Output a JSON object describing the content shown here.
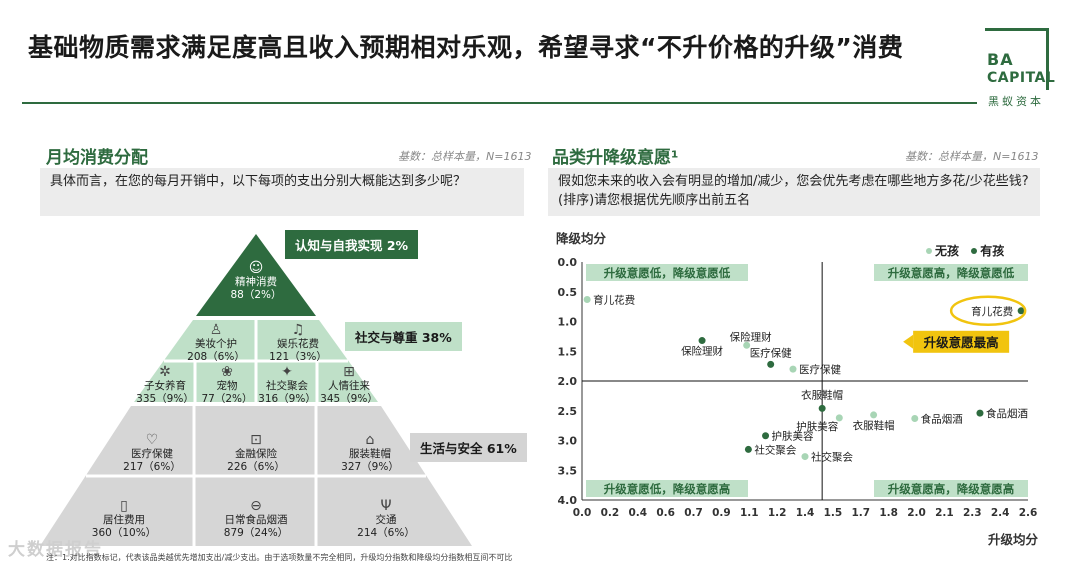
{
  "title": "基础物质需求满足度高且收入预期相对乐观，希望寻求“不升价格的升级”消费",
  "logo": {
    "line1": "BA",
    "line2": "CAPITAL",
    "cn": "黑蚁资本"
  },
  "left": {
    "section_title": "月均消费分配",
    "base_note": "基数：总样本量，N=1613",
    "question": "具体而言，在您的每月开销中，以下每项的支出分别大概能达到多少呢？",
    "callouts": [
      "认知与自我实现 2%",
      "社交与尊重 38%",
      "生活与安全 61%"
    ],
    "top": {
      "icon": "head-icon",
      "name": "精神消费",
      "value": "88（2%）"
    },
    "middle1": [
      {
        "icon": "cosmetics-icon",
        "name": "美妆个护",
        "value": "208（6%）"
      },
      {
        "icon": "entertainment-icon",
        "name": "娱乐花费",
        "value": "121（3%）"
      }
    ],
    "middle2": [
      {
        "icon": "baby-icon",
        "name": "子女养育",
        "value": "335（9%）"
      },
      {
        "icon": "pet-icon",
        "name": "宠物",
        "value": "77（2%）"
      },
      {
        "icon": "social-icon",
        "name": "社交聚会",
        "value": "316（9%）"
      },
      {
        "icon": "gift-icon",
        "name": "人情往来",
        "value": "345（9%）"
      }
    ],
    "bottom1": [
      {
        "icon": "heart-pulse-icon",
        "name": "医疗保健",
        "value": "217（6%）"
      },
      {
        "icon": "finance-icon",
        "name": "金融保险",
        "value": "226（6%）"
      },
      {
        "icon": "shirt-icon",
        "name": "服装鞋帽",
        "value": "327（9%）"
      }
    ],
    "bottom2": [
      {
        "icon": "door-icon",
        "name": "居住费用",
        "value": "360（10%）"
      },
      {
        "icon": "food-icon",
        "name": "日常食品烟酒",
        "value": "879（24%）"
      },
      {
        "icon": "transport-icon",
        "name": "交通",
        "value": "214（6%）"
      }
    ],
    "footnote": "注：1.对比指数标记，代表该品类越优先增加支出/减少支出。由于选项数量不完全相同，升级均分指数和降级均分指数相互间不可比",
    "watermark": "大数据报告"
  },
  "right": {
    "section_title": "品类升降级意愿¹",
    "base_note": "基数：总样本量，N=1613",
    "question": "假如您未来的收入会有明显的增加/减少，您会优先考虑在哪些地方多花/少花些钱?(排序)请您根据优先顺序出前五名",
    "legend": [
      "无孩",
      "有孩"
    ],
    "highlight_label": "升级意愿最高"
  },
  "chart_data": {
    "type": "scatter",
    "xlabel": "升级均分",
    "ylabel": "降级均分",
    "xlim": [
      0.0,
      2.6
    ],
    "ylim": [
      0.0,
      4.0
    ],
    "y_inverted": true,
    "x_ticks": [
      "0.0",
      "0.2",
      "0.4",
      "0.6",
      "0.7",
      "0.9",
      "1.1",
      "1.2",
      "1.4",
      "1.5",
      "1.7",
      "1.8",
      "2.0",
      "2.1",
      "2.3",
      "2.4",
      "2.6"
    ],
    "y_ticks": [
      "0.0",
      "0.5",
      "1.0",
      "1.5",
      "2.0",
      "2.5",
      "3.0",
      "3.5",
      "4.0"
    ],
    "quadrant_divider": {
      "x": 1.4,
      "y": 2.0
    },
    "quadrant_labels": {
      "top_left": "升级意愿低，降级意愿低",
      "top_right": "升级意愿高，降级意愿低",
      "bottom_left": "升级意愿低，降级意愿高",
      "bottom_right": "升级意愿高，降级意愿高"
    },
    "colors": {
      "无孩": "#a8d5b5",
      "有孩": "#2e6b3f",
      "highlight": "#f1c40f"
    },
    "series": [
      {
        "name": "无孩",
        "points": [
          {
            "label": "育儿花费",
            "x": 0.03,
            "y": 0.63
          },
          {
            "label": "保险理财",
            "x": 0.96,
            "y": 1.4
          },
          {
            "label": "医疗保健",
            "x": 1.23,
            "y": 1.8
          },
          {
            "label": "护肤美容",
            "x": 1.5,
            "y": 2.62
          },
          {
            "label": "社交聚会",
            "x": 1.3,
            "y": 3.27
          },
          {
            "label": "衣服鞋帽",
            "x": 1.7,
            "y": 2.57
          },
          {
            "label": "食品烟酒",
            "x": 1.94,
            "y": 2.63
          }
        ]
      },
      {
        "name": "有孩",
        "points": [
          {
            "label": "育儿花费",
            "x": 2.56,
            "y": 0.82
          },
          {
            "label": "保险理财",
            "x": 0.7,
            "y": 1.32
          },
          {
            "label": "医疗保健",
            "x": 1.1,
            "y": 1.72
          },
          {
            "label": "衣服鞋帽",
            "x": 1.4,
            "y": 2.46
          },
          {
            "label": "护肤美容",
            "x": 1.07,
            "y": 2.92
          },
          {
            "label": "社交聚会",
            "x": 0.97,
            "y": 3.15
          },
          {
            "label": "食品烟酒",
            "x": 2.32,
            "y": 2.54
          }
        ]
      }
    ]
  }
}
